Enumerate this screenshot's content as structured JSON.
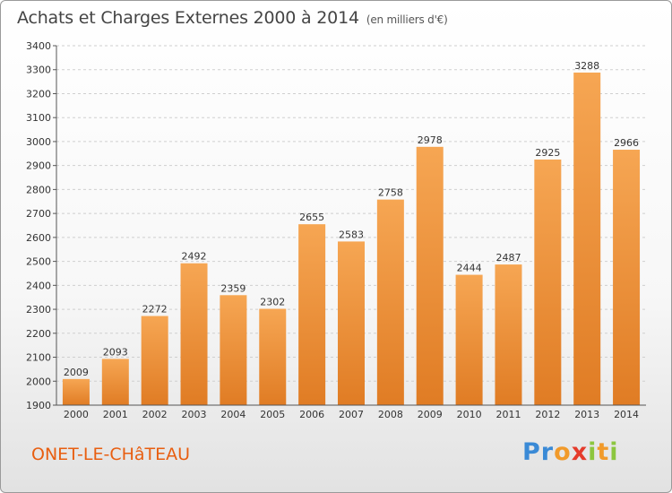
{
  "chart_data": {
    "type": "bar",
    "title": "Achats et Charges Externes 2000 à 2014",
    "unit_label": "(en milliers d'€)",
    "categories": [
      "2000",
      "2001",
      "2002",
      "2003",
      "2004",
      "2005",
      "2006",
      "2007",
      "2008",
      "2009",
      "2010",
      "2011",
      "2012",
      "2013",
      "2014"
    ],
    "values": [
      2009,
      2093,
      2272,
      2492,
      2359,
      2302,
      2655,
      2583,
      2758,
      2978,
      2444,
      2487,
      2925,
      3288,
      2966
    ],
    "ylim": [
      1900,
      3400
    ],
    "yticks": [
      1900,
      2000,
      2100,
      2200,
      2300,
      2400,
      2500,
      2600,
      2700,
      2800,
      2900,
      3000,
      3100,
      3200,
      3300,
      3400
    ],
    "grid": true,
    "bar_color": "#f0943e"
  },
  "footer": {
    "place": "ONET-LE-CHâTEAU",
    "brand": "Proxiti"
  },
  "colors": {
    "place": "#e85e10",
    "brand_letters": [
      "#3a8ad6",
      "#3a8ad6",
      "#f19a2a",
      "#e53b2b",
      "#8cc63f",
      "#f19a2a",
      "#8cc63f"
    ]
  }
}
